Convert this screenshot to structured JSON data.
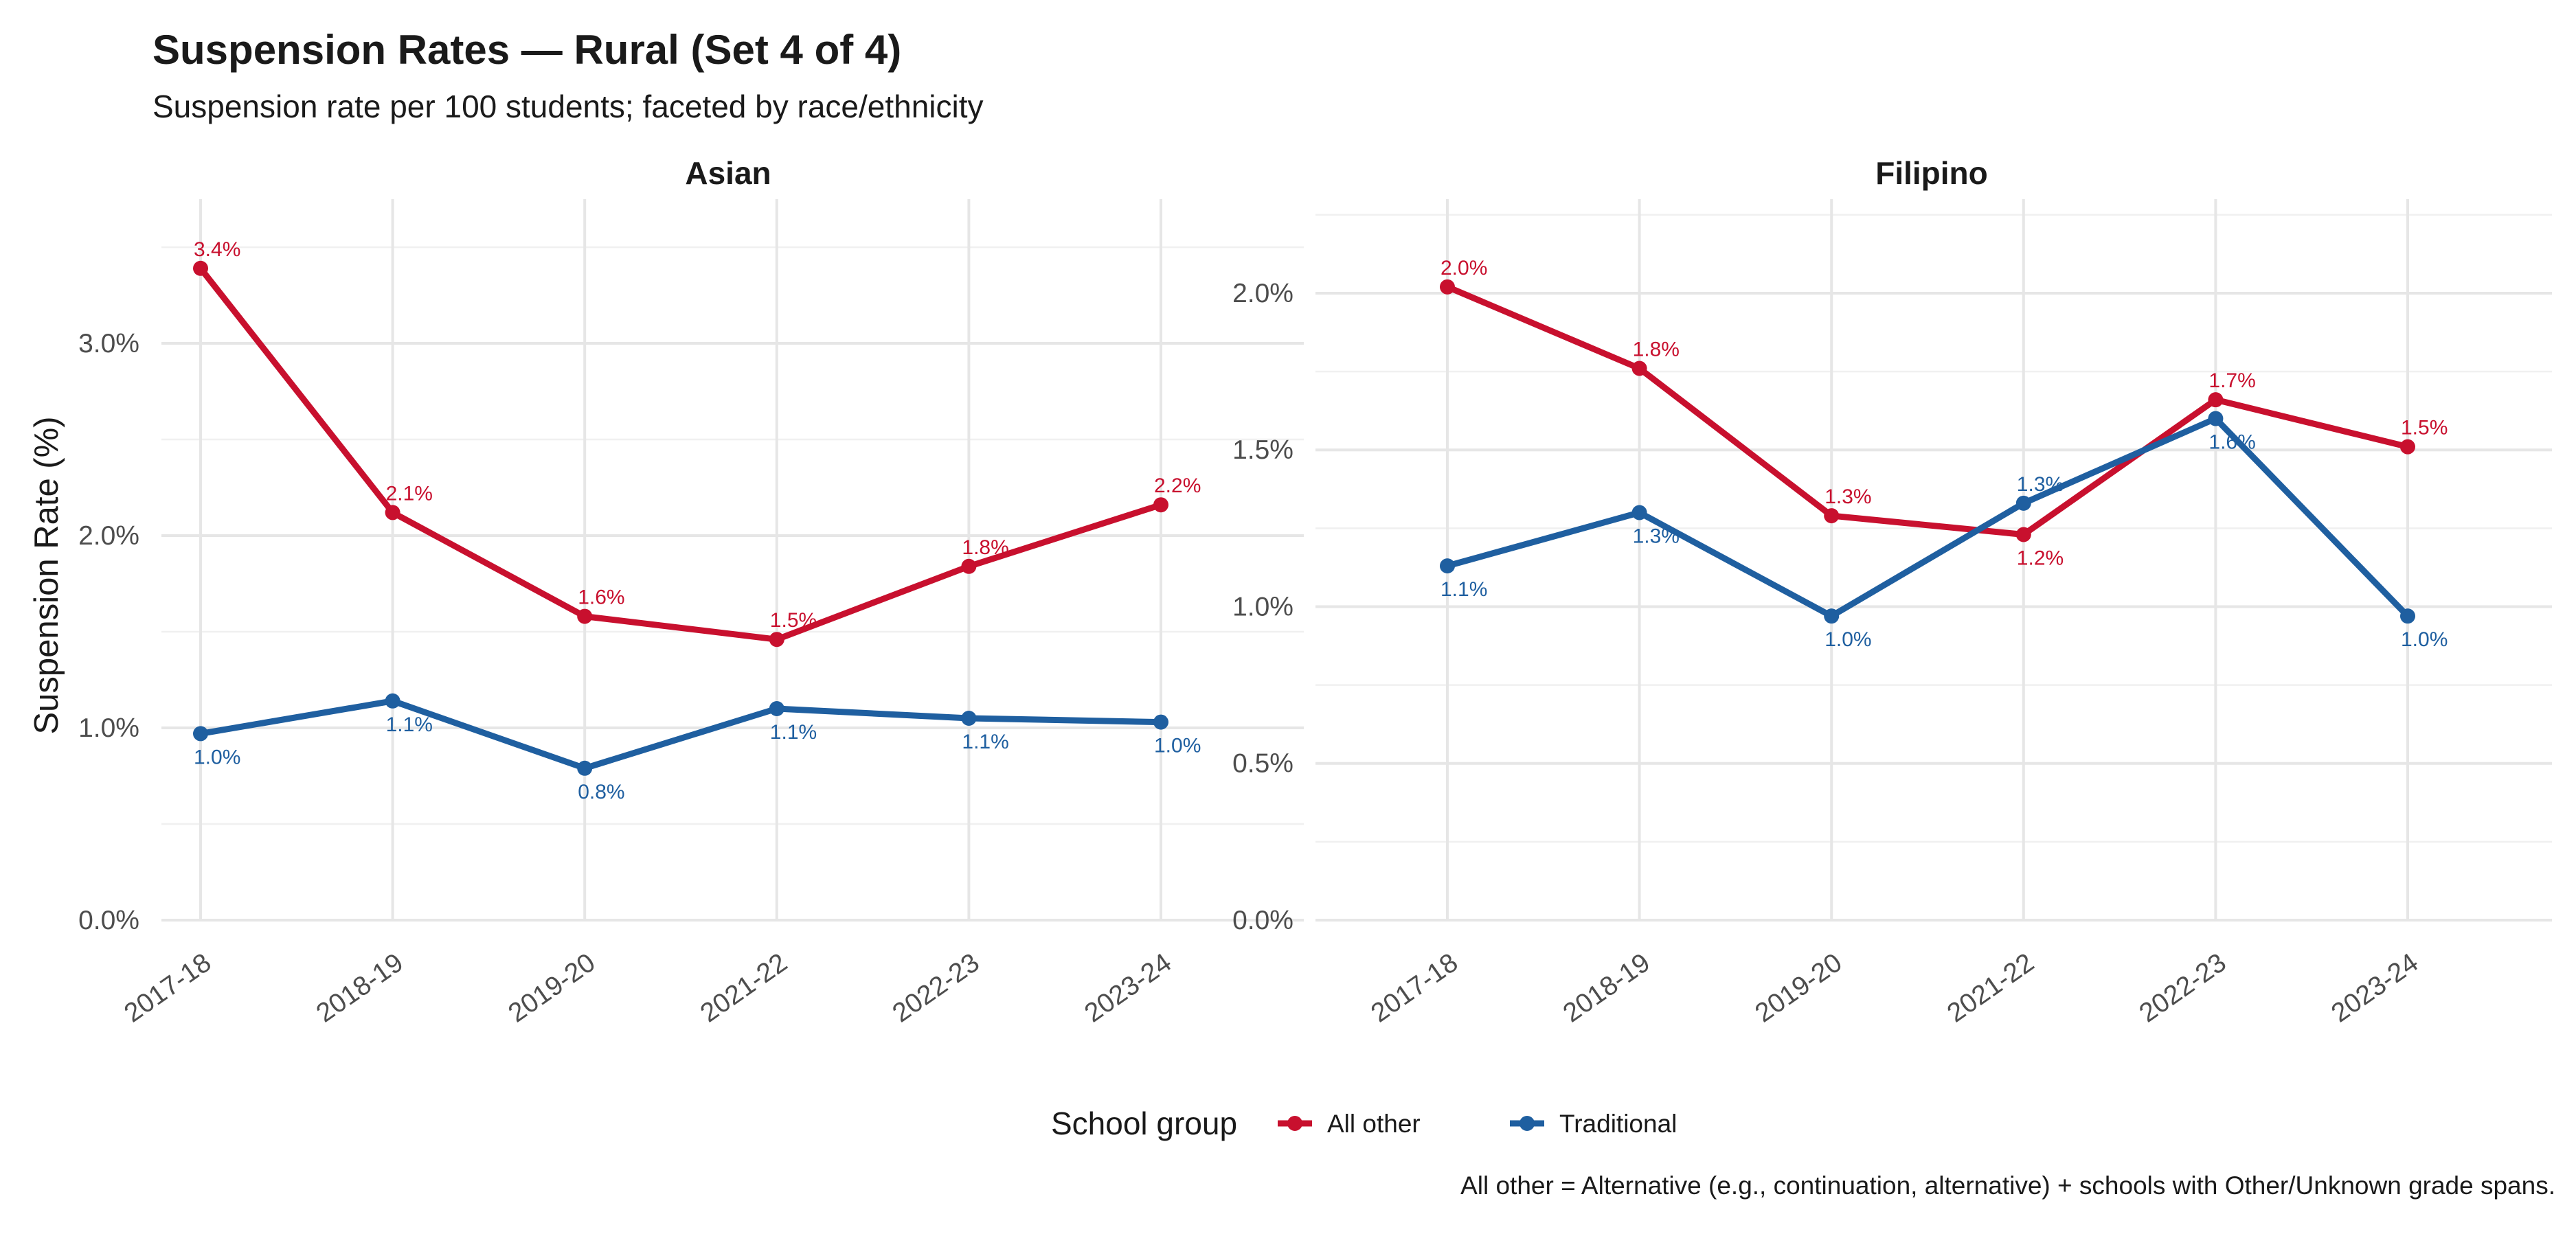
{
  "title": "Suspension Rates — Rural (Set 4 of 4)",
  "subtitle": "Suspension rate per 100 students; faceted by race/ethnicity",
  "caption": "All other = Alternative (e.g., continuation, alternative) + schools with Other/Unknown grade spans.",
  "colors": {
    "All other": "#C8102E",
    "Traditional": "#1F5FA0"
  },
  "chart_data": {
    "type": "line",
    "ylabel": "Suspension Rate (%)",
    "xlabel": "",
    "categories": [
      "2017-18",
      "2018-19",
      "2019-20",
      "2021-22",
      "2022-23",
      "2023-24"
    ],
    "legend": {
      "title": "School group",
      "position": "bottom",
      "entries": [
        "All other",
        "Traditional"
      ]
    },
    "grid": true,
    "facets": [
      {
        "name": "Asian",
        "ylim": [
          0,
          3.75
        ],
        "yticks": [
          0,
          1,
          2,
          3
        ],
        "ytick_labels": [
          "0.0%",
          "1.0%",
          "2.0%",
          "3.0%"
        ],
        "series": [
          {
            "name": "All other",
            "values": [
              3.39,
              2.12,
              1.58,
              1.46,
              1.84,
              2.16
            ],
            "labels": [
              "3.4%",
              "2.1%",
              "1.6%",
              "1.5%",
              "1.8%",
              "2.2%"
            ]
          },
          {
            "name": "Traditional",
            "values": [
              0.97,
              1.14,
              0.79,
              1.1,
              1.05,
              1.03
            ],
            "labels": [
              "1.0%",
              "1.1%",
              "0.8%",
              "1.1%",
              "1.1%",
              "1.0%"
            ]
          }
        ]
      },
      {
        "name": "Filipino",
        "ylim": [
          0,
          2.3
        ],
        "yticks": [
          0,
          0.5,
          1.0,
          1.5,
          2.0
        ],
        "ytick_labels": [
          "0.0%",
          "0.5%",
          "1.0%",
          "1.5%",
          "2.0%"
        ],
        "series": [
          {
            "name": "All other",
            "values": [
              2.02,
              1.76,
              1.29,
              1.23,
              1.66,
              1.51
            ],
            "labels": [
              "2.0%",
              "1.8%",
              "1.3%",
              "1.2%",
              "1.7%",
              "1.5%"
            ]
          },
          {
            "name": "Traditional",
            "values": [
              1.13,
              1.3,
              0.97,
              1.33,
              1.6,
              0.97
            ],
            "labels": [
              "1.1%",
              "1.3%",
              "1.0%",
              "1.3%",
              "1.6%",
              "1.0%"
            ]
          }
        ]
      }
    ]
  }
}
